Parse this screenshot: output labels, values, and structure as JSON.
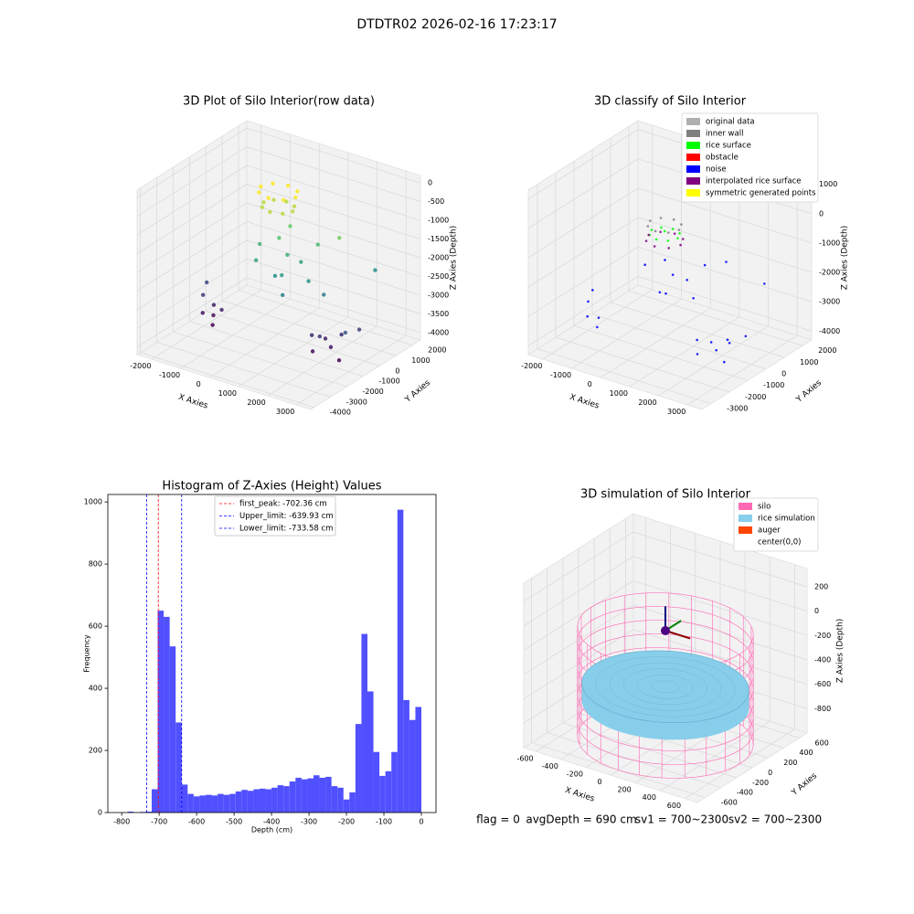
{
  "title": "DTDTR02 2026-02-16 17:23:17",
  "footer": [
    "flag = 0",
    "avgDepth = 690 cm",
    "sv1 = 700~2300",
    "sv2 = 700~2300"
  ],
  "chart_data": [
    {
      "type": "scatter3d",
      "title": "3D Plot of Silo Interior(row data)",
      "xlabel": "X Axies",
      "ylabel": "Y Axies",
      "zlabel": "Z Axies (Depth)",
      "xlim": [
        -2500,
        3500
      ],
      "ylim": [
        -4200,
        2500
      ],
      "zlim": [
        -4200,
        200
      ],
      "xticks": [
        -2000,
        -1000,
        0,
        1000,
        2000,
        3000
      ],
      "yticks": [
        -4000,
        -3000,
        -2000,
        -1000,
        0,
        1000,
        2000
      ],
      "zticks": [
        -4000,
        -3500,
        -3000,
        -2500,
        -2000,
        -1500,
        -1000,
        -500,
        0
      ],
      "colormap": "viridis",
      "series": [
        {
          "x": [
            600,
            424,
            0,
            -424,
            -600,
            -424,
            0,
            424,
            500,
            354,
            0,
            -354,
            -500,
            -354,
            0,
            354,
            200,
            600,
            900,
            -300,
            1200,
            400,
            800,
            1500,
            -200,
            2000,
            2500,
            1000,
            300,
            1800,
            -2200,
            -2100,
            -1900,
            -1700,
            -2000,
            -1500,
            -2300,
            1500,
            1800,
            2100,
            1700,
            2300,
            2500,
            2800,
            3000,
            2000
          ],
          "y": [
            0,
            424,
            600,
            424,
            0,
            -424,
            -600,
            -424,
            0,
            354,
            500,
            354,
            0,
            -354,
            -500,
            -354,
            -300,
            -500,
            -200,
            -600,
            300,
            -900,
            -1200,
            -800,
            -1000,
            200,
            1500,
            -1500,
            200,
            -400,
            -700,
            -900,
            -600,
            -1000,
            -400,
            -800,
            -300,
            -600,
            -300,
            -500,
            -900,
            -200,
            -700,
            0,
            -1200,
            -1000
          ],
          "z": [
            -400,
            -400,
            -400,
            -400,
            -400,
            -400,
            -400,
            -400,
            -800,
            -800,
            -800,
            -800,
            -800,
            -800,
            -800,
            -800,
            -1500,
            -1800,
            -2000,
            -1700,
            -1600,
            -2300,
            -2100,
            -2200,
            -2000,
            -1200,
            -2300,
            -2500,
            -1300,
            -2600,
            -3500,
            -3900,
            -4000,
            -4100,
            -3800,
            -3700,
            -3300,
            -3700,
            -3800,
            -3900,
            -4000,
            -3600,
            -4100,
            -3400,
            -3100,
            -3500
          ]
        }
      ]
    },
    {
      "type": "scatter3d",
      "title": "3D classify of Silo Interior",
      "xlabel": "X Axies",
      "ylabel": "Y Axies",
      "zlabel": "Z Axies (Depth)",
      "xlim": [
        -2500,
        3500
      ],
      "ylim": [
        -3500,
        2500
      ],
      "zlim": [
        -4300,
        1300
      ],
      "xticks": [
        -2000,
        -1000,
        0,
        1000,
        2000,
        3000
      ],
      "yticks": [
        -3000,
        -2000,
        -1000,
        0,
        1000,
        2000
      ],
      "zticks": [
        -4000,
        -3000,
        -2000,
        -1000,
        0,
        1000
      ],
      "series": [
        {
          "name": "original data",
          "color": "#b0b0b0",
          "x": [],
          "y": [],
          "z": []
        },
        {
          "name": "inner wall",
          "color": "#808080",
          "x": [
            500,
            354,
            0,
            -354,
            -500,
            -354,
            0,
            354
          ],
          "y": [
            0,
            354,
            500,
            354,
            0,
            -354,
            -500,
            -354
          ],
          "z": [
            -500,
            -500,
            -500,
            -500,
            -500,
            -500,
            -500,
            -500
          ]
        },
        {
          "name": "rice surface",
          "color": "#00ff00",
          "x": [
            450,
            318,
            0,
            -318,
            -450,
            -318,
            0,
            318,
            0
          ],
          "y": [
            0,
            318,
            450,
            318,
            0,
            -318,
            -450,
            -318,
            0
          ],
          "z": [
            -800,
            -800,
            -800,
            -800,
            -800,
            -800,
            -800,
            -800,
            -700
          ]
        },
        {
          "name": "obstacle",
          "color": "#ff0000",
          "x": [],
          "y": [],
          "z": []
        },
        {
          "name": "noise",
          "color": "#0000ff",
          "x": [
            200,
            600,
            900,
            -300,
            1200,
            400,
            800,
            1500,
            2000,
            2500,
            -2200,
            -2100,
            -1900,
            -1700,
            -2300,
            1500,
            1800,
            2100,
            1700,
            2300,
            2500,
            2800,
            3000
          ],
          "y": [
            -300,
            -500,
            -200,
            -600,
            300,
            -900,
            -1200,
            -800,
            200,
            1500,
            -700,
            -900,
            -600,
            -1000,
            -300,
            -600,
            -300,
            -500,
            -900,
            -200,
            -700,
            0,
            -1200
          ],
          "z": [
            -1500,
            -1800,
            -2000,
            -1700,
            -1600,
            -2300,
            -2100,
            -2200,
            -1200,
            -2300,
            -3500,
            -3900,
            -4000,
            -4100,
            -3300,
            -3700,
            -3800,
            -3900,
            -4000,
            -3600,
            -4100,
            -3400,
            -3100
          ]
        },
        {
          "name": "interpolated rice surface",
          "color": "#800080",
          "x": [
            550,
            389,
            0,
            -389,
            -550,
            -389,
            0,
            389
          ],
          "y": [
            0,
            389,
            550,
            389,
            0,
            -389,
            -550,
            -389
          ],
          "z": [
            -1000,
            -1000,
            -1000,
            -1000,
            -1000,
            -1000,
            -1000,
            -1000
          ]
        },
        {
          "name": "symmetric generated points",
          "color": "#ffff00",
          "x": [],
          "y": [],
          "z": []
        }
      ]
    },
    {
      "type": "histogram",
      "title": "Histogram of Z-Axies (Height) Values",
      "xlabel": "Depth (cm)",
      "ylabel": "Frequency",
      "xlim": [
        -837,
        39
      ],
      "ylim": [
        0,
        1024
      ],
      "xticks": [
        -800,
        -700,
        -600,
        -500,
        -400,
        -300,
        -200,
        -100,
        0
      ],
      "yticks": [
        0,
        200,
        400,
        600,
        800,
        1000
      ],
      "color": "#5050ff",
      "bins": [
        -784,
        -768,
        -752,
        -736,
        -720,
        -704,
        -688,
        -672,
        -656,
        -640,
        -624,
        -608,
        -592,
        -576,
        -560,
        -544,
        -528,
        -512,
        -496,
        -480,
        -464,
        -448,
        -432,
        -416,
        -400,
        -384,
        -368,
        -352,
        -336,
        -320,
        -304,
        -288,
        -272,
        -256,
        -240,
        -224,
        -208,
        -192,
        -176,
        -160,
        -144,
        -128,
        -112,
        -96,
        -80,
        -64,
        -48,
        -32,
        -16,
        0
      ],
      "values": [
        3,
        0,
        2,
        3,
        75,
        650,
        630,
        535,
        290,
        90,
        60,
        52,
        55,
        57,
        55,
        60,
        57,
        60,
        68,
        73,
        70,
        75,
        77,
        75,
        80,
        88,
        85,
        100,
        112,
        107,
        110,
        120,
        112,
        115,
        85,
        80,
        42,
        65,
        285,
        575,
        390,
        195,
        118,
        133,
        195,
        975,
        362,
        298,
        340
      ],
      "vlines": [
        {
          "name": "first_peak: -702.36 cm",
          "value": -702.36,
          "color": "#ff0000"
        },
        {
          "name": "Upper_limit: -639.93 cm",
          "value": -639.93,
          "color": "#0000ff"
        },
        {
          "name": "Lower_limit: -733.58 cm",
          "value": -733.58,
          "color": "#0000ff"
        }
      ]
    },
    {
      "type": "silo3d",
      "title": "3D simulation of Silo Interior",
      "xlabel": "X Axies",
      "ylabel": "Y Axies",
      "zlabel": "Z Axies (Depth)",
      "xlim": [
        -700,
        700
      ],
      "ylim": [
        -700,
        700
      ],
      "zlim": [
        -1000,
        350
      ],
      "xticks": [
        -600,
        -400,
        -200,
        0,
        200,
        400,
        600
      ],
      "yticks": [
        -600,
        -400,
        -200,
        0,
        200,
        400,
        600
      ],
      "zticks": [
        -800,
        -600,
        -400,
        -200,
        0,
        200
      ],
      "series": [
        {
          "name": "silo",
          "color": "#ff69b4",
          "radius": 600,
          "z_top": -100,
          "z_bottom": -1000
        },
        {
          "name": "rice simulation",
          "color": "#87ceeb",
          "radius": 570,
          "z_top": -560,
          "z_bottom": -700
        },
        {
          "name": "auger",
          "color": "#ff4500"
        },
        {
          "name": "center(0,0)",
          "color": "#ffffff"
        }
      ],
      "arrows": {
        "origin": [
          0,
          0,
          -100
        ],
        "center_color": "#4b0082",
        "vectors": [
          {
            "color": "#000080",
            "d": [
              0,
              0,
              200
            ]
          },
          {
            "color": "#008000",
            "d": [
              0,
              200,
              0
            ]
          },
          {
            "color": "#8b0000",
            "d": [
              200,
              0,
              0
            ]
          }
        ]
      }
    }
  ]
}
